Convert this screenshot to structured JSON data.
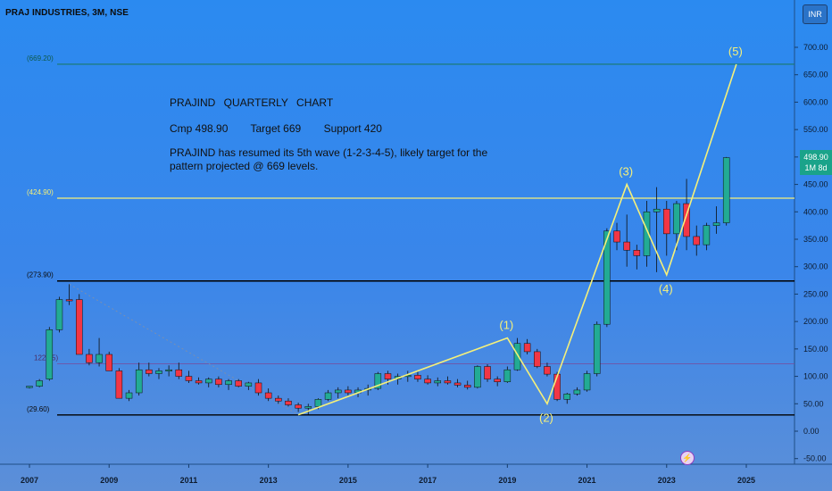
{
  "header": {
    "title": "PRAJ INDUSTRIES, 3M, NSE",
    "currency_button": "INR"
  },
  "notes": {
    "line1": "PRAJIND QUARTERLY CHART",
    "cmp": "Cmp 498.90",
    "target": "Target 669",
    "support": "Support 420",
    "line3": "PRAJIND has resumed its 5th wave (1-2-3-4-5), likely target for the pattern projected @ 669 levels."
  },
  "price_badge": {
    "price": "498.90",
    "interval": "1M 8d"
  },
  "colors": {
    "up": "#22ab94",
    "down": "#f23645",
    "wave": "#f5f07a",
    "target_line": "#1a7a6a",
    "support_line": "#f5f07a",
    "black_line": "#000000"
  },
  "chart_data": {
    "type": "candlestick",
    "x_ticks": [
      "2007",
      "2009",
      "2011",
      "2013",
      "2015",
      "2017",
      "2019",
      "2021",
      "2023",
      "2025"
    ],
    "y_ticks": [
      "-50.00",
      "0.00",
      "50.00",
      "100.00",
      "150.00",
      "200.00",
      "250.00",
      "300.00",
      "350.00",
      "400.00",
      "450.00",
      "500.00",
      "550.00",
      "600.00",
      "650.00",
      "700.00"
    ],
    "ylim": [
      -60,
      720
    ],
    "xlim": [
      2006.5,
      2026.0
    ],
    "horizontal_lines": [
      {
        "label": "(669.20)",
        "value": 669.2,
        "kind": "target"
      },
      {
        "label": "(424.90)",
        "value": 424.9,
        "kind": "yellow"
      },
      {
        "label": "(273.90)",
        "value": 273.9,
        "kind": "black"
      },
      {
        "label": "122.95)",
        "value": 122.95,
        "kind": "purple"
      },
      {
        "label": "(29.60)",
        "value": 29.6,
        "kind": "black"
      }
    ],
    "candles": [
      [
        2007.0,
        80,
        82,
        78,
        82
      ],
      [
        2007.25,
        82,
        95,
        80,
        92
      ],
      [
        2007.5,
        95,
        190,
        92,
        185
      ],
      [
        2007.75,
        185,
        245,
        180,
        240
      ],
      [
        2008.0,
        240,
        268,
        230,
        238
      ],
      [
        2008.25,
        240,
        250,
        140,
        140
      ],
      [
        2008.5,
        140,
        150,
        120,
        125
      ],
      [
        2008.75,
        125,
        170,
        118,
        140
      ],
      [
        2009.0,
        140,
        145,
        110,
        110
      ],
      [
        2009.25,
        110,
        115,
        60,
        60
      ],
      [
        2009.5,
        60,
        75,
        55,
        70
      ],
      [
        2009.75,
        70,
        125,
        65,
        112
      ],
      [
        2010.0,
        112,
        125,
        100,
        105
      ],
      [
        2010.25,
        105,
        115,
        95,
        110
      ],
      [
        2010.5,
        110,
        120,
        100,
        112
      ],
      [
        2010.75,
        112,
        125,
        95,
        100
      ],
      [
        2011.0,
        100,
        110,
        88,
        92
      ],
      [
        2011.25,
        92,
        98,
        85,
        88
      ],
      [
        2011.5,
        88,
        98,
        80,
        95
      ],
      [
        2011.75,
        95,
        100,
        80,
        85
      ],
      [
        2012.0,
        85,
        95,
        75,
        92
      ],
      [
        2012.25,
        92,
        95,
        80,
        82
      ],
      [
        2012.5,
        82,
        90,
        75,
        88
      ],
      [
        2012.75,
        88,
        95,
        65,
        70
      ],
      [
        2013.0,
        70,
        78,
        55,
        60
      ],
      [
        2013.25,
        60,
        65,
        50,
        55
      ],
      [
        2013.5,
        55,
        60,
        45,
        48
      ],
      [
        2013.75,
        48,
        52,
        35,
        42
      ],
      [
        2014.0,
        42,
        50,
        30,
        45
      ],
      [
        2014.25,
        45,
        60,
        40,
        58
      ],
      [
        2014.5,
        58,
        75,
        55,
        70
      ],
      [
        2014.75,
        70,
        80,
        60,
        75
      ],
      [
        2015.0,
        75,
        82,
        65,
        70
      ],
      [
        2015.25,
        70,
        80,
        62,
        75
      ],
      [
        2015.5,
        75,
        85,
        65,
        78
      ],
      [
        2015.75,
        78,
        108,
        75,
        105
      ],
      [
        2016.0,
        105,
        110,
        85,
        95
      ],
      [
        2016.25,
        95,
        105,
        85,
        100
      ],
      [
        2016.5,
        100,
        110,
        90,
        102
      ],
      [
        2016.75,
        102,
        108,
        90,
        95
      ],
      [
        2017.0,
        95,
        102,
        85,
        88
      ],
      [
        2017.25,
        88,
        98,
        82,
        92
      ],
      [
        2017.5,
        92,
        100,
        85,
        88
      ],
      [
        2017.75,
        88,
        95,
        80,
        84
      ],
      [
        2018.0,
        84,
        92,
        76,
        80
      ],
      [
        2018.25,
        80,
        120,
        78,
        118
      ],
      [
        2018.5,
        118,
        122,
        90,
        95
      ],
      [
        2018.75,
        95,
        100,
        82,
        90
      ],
      [
        2019.0,
        90,
        118,
        88,
        112
      ],
      [
        2019.25,
        112,
        170,
        110,
        160
      ],
      [
        2019.5,
        160,
        168,
        140,
        145
      ],
      [
        2019.75,
        145,
        150,
        115,
        118
      ],
      [
        2020.0,
        118,
        125,
        100,
        104
      ],
      [
        2020.25,
        104,
        108,
        55,
        58
      ],
      [
        2020.5,
        58,
        70,
        50,
        68
      ],
      [
        2020.75,
        68,
        80,
        65,
        75
      ],
      [
        2021.0,
        75,
        110,
        72,
        105
      ],
      [
        2021.25,
        105,
        200,
        100,
        195
      ],
      [
        2021.5,
        195,
        370,
        190,
        365
      ],
      [
        2021.75,
        365,
        380,
        330,
        345
      ],
      [
        2022.0,
        345,
        395,
        300,
        330
      ],
      [
        2022.25,
        330,
        340,
        295,
        320
      ],
      [
        2022.5,
        320,
        420,
        300,
        400
      ],
      [
        2022.75,
        400,
        445,
        290,
        405
      ],
      [
        2023.0,
        405,
        420,
        320,
        360
      ],
      [
        2023.25,
        360,
        420,
        330,
        415
      ],
      [
        2023.5,
        415,
        460,
        330,
        355
      ],
      [
        2023.75,
        355,
        375,
        320,
        340
      ],
      [
        2024.0,
        340,
        380,
        330,
        375
      ],
      [
        2024.25,
        375,
        410,
        360,
        380
      ],
      [
        2024.5,
        380,
        500,
        375,
        498.9
      ]
    ],
    "wave_points": [
      {
        "label": "",
        "x": 2013.75,
        "y": 30
      },
      {
        "label": "(1)",
        "x": 2019.0,
        "y": 170
      },
      {
        "label": "(2)",
        "x": 2020.0,
        "y": 50
      },
      {
        "label": "(3)",
        "x": 2022.0,
        "y": 450
      },
      {
        "label": "(4)",
        "x": 2023.0,
        "y": 285
      },
      {
        "label": "(5)",
        "x": 2024.75,
        "y": 669
      }
    ],
    "trend_line": [
      {
        "x": 2008.0,
        "y": 268
      },
      {
        "x": 2013.75,
        "y": 30
      }
    ]
  }
}
